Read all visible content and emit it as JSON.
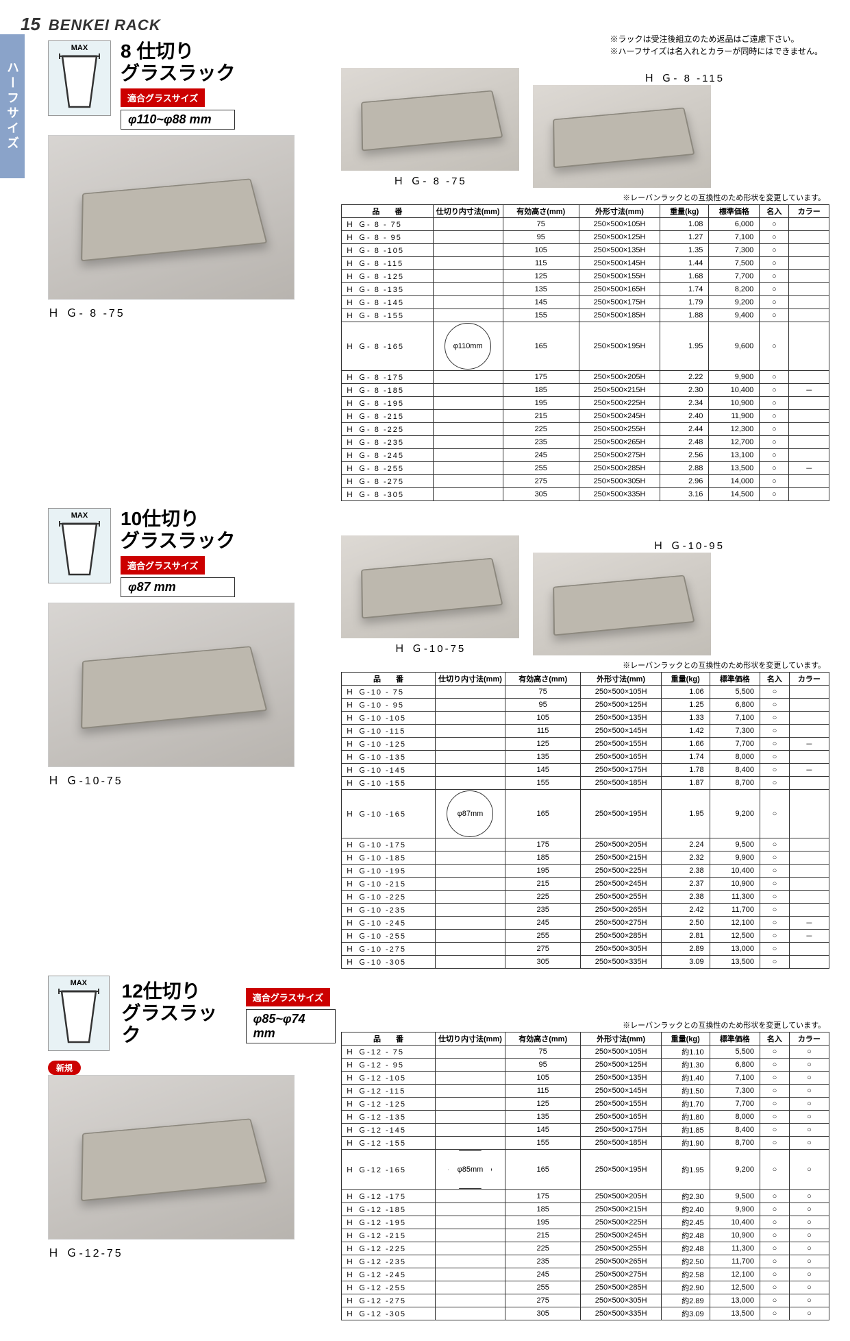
{
  "page": {
    "number": "15",
    "title": "BENKEI RACK",
    "sideTab": "ハーフサイズ"
  },
  "topNotes": [
    "※ラックは受注後組立のため返品はご遠慮下さい。",
    "※ハーフサイズは名入れとカラーが同時にはできません。"
  ],
  "glassMax": "MAX",
  "sections": [
    {
      "title1": "8 仕切り",
      "title2": "グラスラック",
      "sizeLabel": "適合グラスサイズ",
      "sizeValue": "φ110~φ88 mm",
      "photoCaption": "Ｈ Ｇ- 8 -75",
      "rightCaptions": [
        "Ｈ Ｇ- 8 -75",
        "Ｈ Ｇ- 8 -115"
      ],
      "tableNote": "※レーバンラックとの互換性のため形状を変更しています。",
      "innerDiagram": "φ110mm",
      "diagramShape": "circle",
      "headers": [
        "品　　番",
        "仕切り内寸法(mm)",
        "有効高さ(mm)",
        "外形寸法(mm)",
        "重量(kg)",
        "標準価格",
        "名入",
        "カラー"
      ],
      "rows": [
        [
          "Ｈ Ｇ- 8 - 75",
          "",
          "75",
          "250×500×105H",
          "1.08",
          "6,000",
          "○",
          ""
        ],
        [
          "Ｈ Ｇ- 8 - 95",
          "",
          "95",
          "250×500×125H",
          "1.27",
          "7,100",
          "○",
          ""
        ],
        [
          "Ｈ Ｇ- 8 -105",
          "",
          "105",
          "250×500×135H",
          "1.35",
          "7,300",
          "○",
          ""
        ],
        [
          "Ｈ Ｇ- 8 -115",
          "",
          "115",
          "250×500×145H",
          "1.44",
          "7,500",
          "○",
          ""
        ],
        [
          "Ｈ Ｇ- 8 -125",
          "",
          "125",
          "250×500×155H",
          "1.68",
          "7,700",
          "○",
          ""
        ],
        [
          "Ｈ Ｇ- 8 -135",
          "",
          "135",
          "250×500×165H",
          "1.74",
          "8,200",
          "○",
          ""
        ],
        [
          "Ｈ Ｇ- 8 -145",
          "",
          "145",
          "250×500×175H",
          "1.79",
          "9,200",
          "○",
          ""
        ],
        [
          "Ｈ Ｇ- 8 -155",
          "",
          "155",
          "250×500×185H",
          "1.88",
          "9,400",
          "○",
          ""
        ],
        [
          "Ｈ Ｇ- 8 -165",
          "",
          "165",
          "250×500×195H",
          "1.95",
          "9,600",
          "○",
          ""
        ],
        [
          "Ｈ Ｇ- 8 -175",
          "",
          "175",
          "250×500×205H",
          "2.22",
          "9,900",
          "○",
          ""
        ],
        [
          "Ｈ Ｇ- 8 -185",
          "",
          "185",
          "250×500×215H",
          "2.30",
          "10,400",
          "○",
          "－"
        ],
        [
          "Ｈ Ｇ- 8 -195",
          "",
          "195",
          "250×500×225H",
          "2.34",
          "10,900",
          "○",
          ""
        ],
        [
          "Ｈ Ｇ- 8 -215",
          "",
          "215",
          "250×500×245H",
          "2.40",
          "11,900",
          "○",
          ""
        ],
        [
          "Ｈ Ｇ- 8 -225",
          "",
          "225",
          "250×500×255H",
          "2.44",
          "12,300",
          "○",
          ""
        ],
        [
          "Ｈ Ｇ- 8 -235",
          "",
          "235",
          "250×500×265H",
          "2.48",
          "12,700",
          "○",
          ""
        ],
        [
          "Ｈ Ｇ- 8 -245",
          "",
          "245",
          "250×500×275H",
          "2.56",
          "13,100",
          "○",
          ""
        ],
        [
          "Ｈ Ｇ- 8 -255",
          "",
          "255",
          "250×500×285H",
          "2.88",
          "13,500",
          "○",
          "－"
        ],
        [
          "Ｈ Ｇ- 8 -275",
          "",
          "275",
          "250×500×305H",
          "2.96",
          "14,000",
          "○",
          ""
        ],
        [
          "Ｈ Ｇ- 8 -305",
          "",
          "305",
          "250×500×335H",
          "3.16",
          "14,500",
          "○",
          ""
        ]
      ]
    },
    {
      "title1": "10仕切り",
      "title2": "グラスラック",
      "sizeLabel": "適合グラスサイズ",
      "sizeValue": "φ87 mm",
      "photoCaption": "Ｈ Ｇ-10-75",
      "rightCaptions": [
        "Ｈ Ｇ-10-75",
        "Ｈ Ｇ-10-95"
      ],
      "tableNote": "※レーバンラックとの互換性のため形状を変更しています。",
      "innerDiagram": "φ87mm",
      "diagramShape": "circle",
      "headers": [
        "品　　番",
        "仕切り内寸法(mm)",
        "有効高さ(mm)",
        "外形寸法(mm)",
        "重量(kg)",
        "標準価格",
        "名入",
        "カラー"
      ],
      "rows": [
        [
          "Ｈ Ｇ-10 - 75",
          "",
          "75",
          "250×500×105H",
          "1.06",
          "5,500",
          "○",
          ""
        ],
        [
          "Ｈ Ｇ-10 - 95",
          "",
          "95",
          "250×500×125H",
          "1.25",
          "6,800",
          "○",
          ""
        ],
        [
          "Ｈ Ｇ-10 -105",
          "",
          "105",
          "250×500×135H",
          "1.33",
          "7,100",
          "○",
          ""
        ],
        [
          "Ｈ Ｇ-10 -115",
          "",
          "115",
          "250×500×145H",
          "1.42",
          "7,300",
          "○",
          ""
        ],
        [
          "Ｈ Ｇ-10 -125",
          "",
          "125",
          "250×500×155H",
          "1.66",
          "7,700",
          "○",
          "－"
        ],
        [
          "Ｈ Ｇ-10 -135",
          "",
          "135",
          "250×500×165H",
          "1.74",
          "8,000",
          "○",
          ""
        ],
        [
          "Ｈ Ｇ-10 -145",
          "",
          "145",
          "250×500×175H",
          "1.78",
          "8,400",
          "○",
          "－"
        ],
        [
          "Ｈ Ｇ-10 -155",
          "",
          "155",
          "250×500×185H",
          "1.87",
          "8,700",
          "○",
          ""
        ],
        [
          "Ｈ Ｇ-10 -165",
          "",
          "165",
          "250×500×195H",
          "1.95",
          "9,200",
          "○",
          ""
        ],
        [
          "Ｈ Ｇ-10 -175",
          "",
          "175",
          "250×500×205H",
          "2.24",
          "9,500",
          "○",
          ""
        ],
        [
          "Ｈ Ｇ-10 -185",
          "",
          "185",
          "250×500×215H",
          "2.32",
          "9,900",
          "○",
          ""
        ],
        [
          "Ｈ Ｇ-10 -195",
          "",
          "195",
          "250×500×225H",
          "2.38",
          "10,400",
          "○",
          ""
        ],
        [
          "Ｈ Ｇ-10 -215",
          "",
          "215",
          "250×500×245H",
          "2.37",
          "10,900",
          "○",
          ""
        ],
        [
          "Ｈ Ｇ-10 -225",
          "",
          "225",
          "250×500×255H",
          "2.38",
          "11,300",
          "○",
          ""
        ],
        [
          "Ｈ Ｇ-10 -235",
          "",
          "235",
          "250×500×265H",
          "2.42",
          "11,700",
          "○",
          ""
        ],
        [
          "Ｈ Ｇ-10 -245",
          "",
          "245",
          "250×500×275H",
          "2.50",
          "12,100",
          "○",
          "－"
        ],
        [
          "Ｈ Ｇ-10 -255",
          "",
          "255",
          "250×500×285H",
          "2.81",
          "12,500",
          "○",
          "－"
        ],
        [
          "Ｈ Ｇ-10 -275",
          "",
          "275",
          "250×500×305H",
          "2.89",
          "13,000",
          "○",
          ""
        ],
        [
          "Ｈ Ｇ-10 -305",
          "",
          "305",
          "250×500×335H",
          "3.09",
          "13,500",
          "○",
          ""
        ]
      ]
    },
    {
      "title1": "12仕切り",
      "title2": "グラスラック",
      "sizeLabel": "適合グラスサイズ",
      "sizeValue": "φ85~φ74 mm",
      "newBadge": "新規",
      "photoCaption": "Ｈ Ｇ-12-75",
      "tableNote": "※レーバンラックとの互換性のため形状を変更しています。",
      "innerDiagram": "φ85mm",
      "diagramShape": "hex",
      "headers": [
        "品　　番",
        "仕切り内寸法(mm)",
        "有効高さ(mm)",
        "外形寸法(mm)",
        "重量(kg)",
        "標準価格",
        "名入",
        "カラー"
      ],
      "rows": [
        [
          "Ｈ Ｇ-12 - 75",
          "",
          "75",
          "250×500×105H",
          "約1.10",
          "5,500",
          "○",
          "○"
        ],
        [
          "Ｈ Ｇ-12 - 95",
          "",
          "95",
          "250×500×125H",
          "約1.30",
          "6,800",
          "○",
          "○"
        ],
        [
          "Ｈ Ｇ-12 -105",
          "",
          "105",
          "250×500×135H",
          "約1.40",
          "7,100",
          "○",
          "○"
        ],
        [
          "Ｈ Ｇ-12 -115",
          "",
          "115",
          "250×500×145H",
          "約1.50",
          "7,300",
          "○",
          "○"
        ],
        [
          "Ｈ Ｇ-12 -125",
          "",
          "125",
          "250×500×155H",
          "約1.70",
          "7,700",
          "○",
          "○"
        ],
        [
          "Ｈ Ｇ-12 -135",
          "",
          "135",
          "250×500×165H",
          "約1.80",
          "8,000",
          "○",
          "○"
        ],
        [
          "Ｈ Ｇ-12 -145",
          "",
          "145",
          "250×500×175H",
          "約1.85",
          "8,400",
          "○",
          "○"
        ],
        [
          "Ｈ Ｇ-12 -155",
          "",
          "155",
          "250×500×185H",
          "約1.90",
          "8,700",
          "○",
          "○"
        ],
        [
          "Ｈ Ｇ-12 -165",
          "",
          "165",
          "250×500×195H",
          "約1.95",
          "9,200",
          "○",
          "○"
        ],
        [
          "Ｈ Ｇ-12 -175",
          "",
          "175",
          "250×500×205H",
          "約2.30",
          "9,500",
          "○",
          "○"
        ],
        [
          "Ｈ Ｇ-12 -185",
          "",
          "185",
          "250×500×215H",
          "約2.40",
          "9,900",
          "○",
          "○"
        ],
        [
          "Ｈ Ｇ-12 -195",
          "",
          "195",
          "250×500×225H",
          "約2.45",
          "10,400",
          "○",
          "○"
        ],
        [
          "Ｈ Ｇ-12 -215",
          "",
          "215",
          "250×500×245H",
          "約2.48",
          "10,900",
          "○",
          "○"
        ],
        [
          "Ｈ Ｇ-12 -225",
          "",
          "225",
          "250×500×255H",
          "約2.48",
          "11,300",
          "○",
          "○"
        ],
        [
          "Ｈ Ｇ-12 -235",
          "",
          "235",
          "250×500×265H",
          "約2.50",
          "11,700",
          "○",
          "○"
        ],
        [
          "Ｈ Ｇ-12 -245",
          "",
          "245",
          "250×500×275H",
          "約2.58",
          "12,100",
          "○",
          "○"
        ],
        [
          "Ｈ Ｇ-12 -255",
          "",
          "255",
          "250×500×285H",
          "約2.90",
          "12,500",
          "○",
          "○"
        ],
        [
          "Ｈ Ｇ-12 -275",
          "",
          "275",
          "250×500×305H",
          "約2.89",
          "13,000",
          "○",
          "○"
        ],
        [
          "Ｈ Ｇ-12 -305",
          "",
          "305",
          "250×500×335H",
          "約3.09",
          "13,500",
          "○",
          "○"
        ]
      ]
    }
  ]
}
